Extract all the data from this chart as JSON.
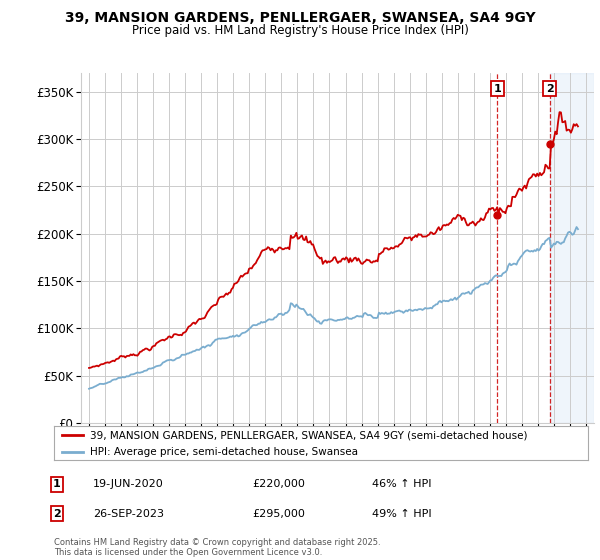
{
  "title_line1": "39, MANSION GARDENS, PENLLERGAER, SWANSEA, SA4 9GY",
  "title_line2": "Price paid vs. HM Land Registry's House Price Index (HPI)",
  "ylim": [
    0,
    370000
  ],
  "yticks": [
    0,
    50000,
    100000,
    150000,
    200000,
    250000,
    300000,
    350000
  ],
  "ytick_labels": [
    "£0",
    "£50K",
    "£100K",
    "£150K",
    "£200K",
    "£250K",
    "£300K",
    "£350K"
  ],
  "red_line_color": "#cc0000",
  "blue_line_color": "#7aadcf",
  "background_color": "#ffffff",
  "grid_color": "#cccccc",
  "annotation1_date": "19-JUN-2020",
  "annotation1_price": "£220,000",
  "annotation1_hpi": "46% ↑ HPI",
  "annotation2_date": "26-SEP-2023",
  "annotation2_price": "£295,000",
  "annotation2_hpi": "49% ↑ HPI",
  "legend_red_label": "39, MANSION GARDENS, PENLLERGAER, SWANSEA, SA4 9GY (semi-detached house)",
  "legend_blue_label": "HPI: Average price, semi-detached house, Swansea",
  "footer_text": "Contains HM Land Registry data © Crown copyright and database right 2025.\nThis data is licensed under the Open Government Licence v3.0.",
  "marker1_x": 2020.46,
  "marker1_y": 220000,
  "marker2_x": 2023.73,
  "marker2_y": 295000,
  "vline1_x": 2020.46,
  "vline2_x": 2023.73,
  "shade_start": 2023.73,
  "shade_end": 2026.5,
  "xmin": 1994.5,
  "xmax": 2026.5
}
